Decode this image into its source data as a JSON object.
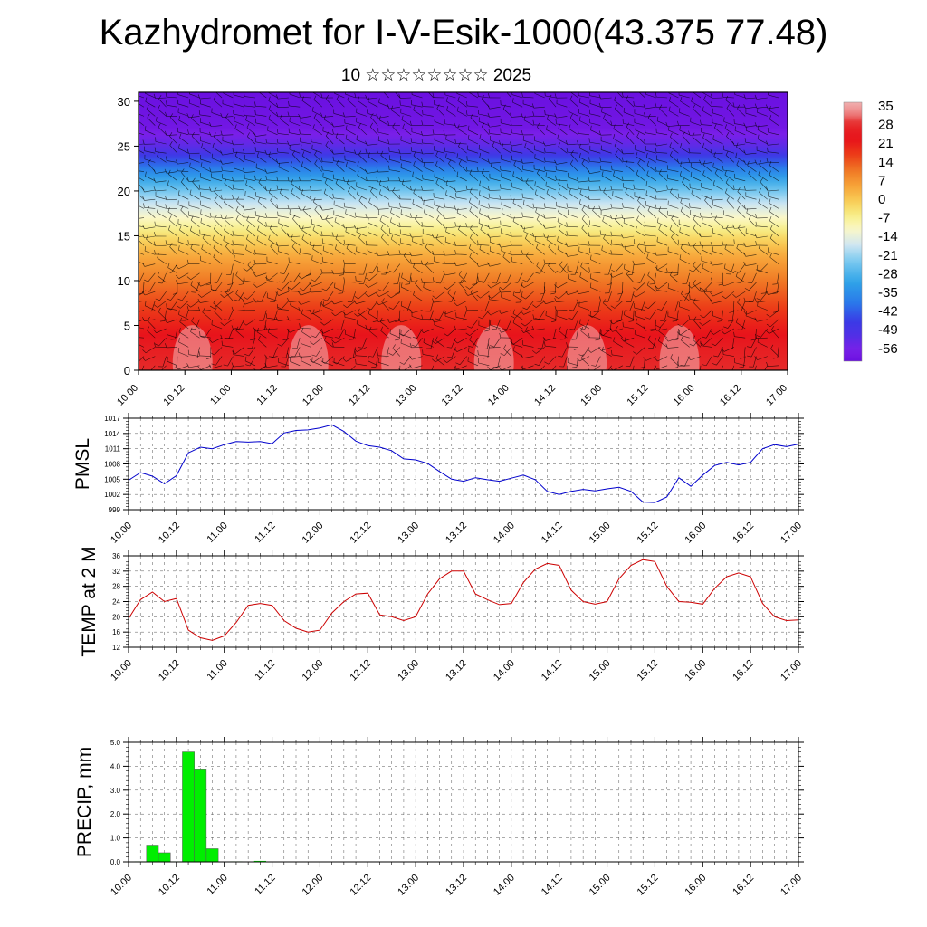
{
  "header": {
    "title": "Kazhydromet for I-V-Esik-1000(43.375 77.48)",
    "subtitle": "10 ☆☆☆☆☆☆☆☆ 2025"
  },
  "chart_data": [
    {
      "type": "heatmap",
      "title": "",
      "xlabel": "",
      "ylabel": "",
      "x_tick_labels": [
        "10.00",
        "10.12",
        "11.00",
        "11.12",
        "12.00",
        "12.12",
        "13.00",
        "13.12",
        "14.00",
        "14.12",
        "15.00",
        "15.12",
        "16.00",
        "16.12",
        "17.00"
      ],
      "y_ticks": [
        0,
        5,
        10,
        15,
        20,
        25,
        30
      ],
      "xlim": [
        0,
        168
      ],
      "ylim": [
        0,
        31
      ],
      "colorbar_labels": [
        "35",
        "28",
        "21",
        "14",
        "7",
        "0",
        "-7",
        "-14",
        "-21",
        "-28",
        "-35",
        "-42",
        "-49",
        "-56"
      ],
      "colorbar_range": [
        -60,
        38
      ],
      "colors": {
        "very_cold": "#7a1fe8",
        "cold": "#3a3ae6",
        "cool": "#2fa4e8",
        "mild": "#cfe6f2",
        "neutral": "#f7ef8a",
        "warm": "#f79a2a",
        "hot": "#e8121a",
        "very_hot": "#f0b0b0"
      },
      "description_levels": {
        "y": [
          0,
          3,
          6,
          10,
          13,
          15,
          17,
          19,
          21,
          23,
          25,
          27,
          31
        ],
        "t": [
          30,
          26,
          20,
          12,
          5,
          -2,
          -10,
          -18,
          -28,
          -40,
          -52,
          -58,
          -60
        ]
      },
      "overlay": "wind barbs"
    },
    {
      "type": "line",
      "ylabel": "PMSL",
      "x_tick_labels": [
        "10.00",
        "10.12",
        "11.00",
        "11.12",
        "12.00",
        "12.12",
        "13.00",
        "13.12",
        "14.00",
        "14.12",
        "15.00",
        "15.12",
        "16.00",
        "16.12",
        "17.00"
      ],
      "xlim": [
        0,
        168
      ],
      "ylim": [
        999,
        1017
      ],
      "y_ticks": [
        999,
        1002,
        1005,
        1008,
        1011,
        1014,
        1017
      ],
      "grid": true,
      "series": [
        {
          "color": "#0000cc",
          "x": [
            0,
            3,
            6,
            9,
            12,
            15,
            18,
            21,
            24,
            27,
            30,
            33,
            36,
            39,
            42,
            45,
            48,
            51,
            54,
            57,
            60,
            63,
            66,
            69,
            72,
            75,
            78,
            81,
            84,
            87,
            90,
            93,
            96,
            99,
            102,
            105,
            108,
            111,
            114,
            117,
            120,
            123,
            126,
            129,
            132,
            135,
            138,
            141,
            144,
            147,
            150,
            153,
            156,
            159,
            162,
            165,
            168
          ],
          "values": [
            1004.8,
            1006.3,
            1005.6,
            1004.1,
            1005.7,
            1010.2,
            1011.3,
            1011.0,
            1011.8,
            1012.4,
            1012.3,
            1012.4,
            1012.0,
            1014.1,
            1014.6,
            1014.7,
            1015.1,
            1015.7,
            1014.4,
            1012.5,
            1011.6,
            1011.3,
            1010.6,
            1009.0,
            1008.8,
            1008.1,
            1006.5,
            1005.0,
            1004.6,
            1005.3,
            1004.9,
            1004.6,
            1005.2,
            1005.8,
            1004.9,
            1002.6,
            1002.0,
            1002.6,
            1003.0,
            1002.7,
            1003.1,
            1003.4,
            1002.6,
            1000.5,
            1000.4,
            1001.5,
            1005.3,
            1003.6,
            1005.8,
            1007.7,
            1008.3,
            1007.8,
            1008.3,
            1011.0,
            1011.8,
            1011.4,
            1011.9
          ]
        }
      ]
    },
    {
      "type": "line",
      "ylabel": "TEMP at 2 M",
      "x_tick_labels": [
        "10.00",
        "10.12",
        "11.00",
        "11.12",
        "12.00",
        "12.12",
        "13.00",
        "13.12",
        "14.00",
        "14.12",
        "15.00",
        "15.12",
        "16.00",
        "16.12",
        "17.00"
      ],
      "xlim": [
        0,
        168
      ],
      "ylim": [
        12,
        36
      ],
      "y_ticks": [
        12,
        16,
        20,
        24,
        28,
        32,
        36
      ],
      "grid": true,
      "series": [
        {
          "color": "#cc0000",
          "x": [
            0,
            3,
            6,
            9,
            12,
            15,
            18,
            21,
            24,
            27,
            30,
            33,
            36,
            39,
            42,
            45,
            48,
            51,
            54,
            57,
            60,
            63,
            66,
            69,
            72,
            75,
            78,
            81,
            84,
            87,
            90,
            93,
            96,
            99,
            102,
            105,
            108,
            111,
            114,
            117,
            120,
            123,
            126,
            129,
            132,
            135,
            138,
            141,
            144,
            147,
            150,
            153,
            156,
            159,
            162,
            165,
            168
          ],
          "values": [
            19.5,
            24.5,
            26.5,
            24.0,
            24.8,
            16.5,
            14.5,
            13.8,
            15.0,
            18.5,
            23.0,
            23.5,
            23.0,
            19.0,
            17.0,
            16.0,
            16.5,
            21.0,
            24.0,
            26.0,
            26.2,
            20.5,
            20.0,
            19.0,
            20.0,
            26.0,
            30.0,
            32.0,
            32.0,
            26.0,
            24.5,
            23.2,
            23.5,
            29.0,
            32.5,
            34.0,
            33.5,
            27.0,
            24.0,
            23.3,
            24.0,
            30.0,
            33.5,
            35.0,
            34.5,
            28.0,
            24.0,
            23.8,
            23.3,
            27.5,
            30.5,
            31.5,
            30.5,
            23.5,
            20.0,
            19.0,
            19.2
          ]
        }
      ]
    },
    {
      "type": "bar",
      "ylabel": "PRECIP, mm",
      "x_tick_labels": [
        "10.00",
        "10.12",
        "11.00",
        "11.12",
        "12.00",
        "12.12",
        "13.00",
        "13.12",
        "14.00",
        "14.12",
        "15.00",
        "15.12",
        "16.00",
        "16.12",
        "17.00"
      ],
      "xlim": [
        0,
        168
      ],
      "ylim": [
        0,
        5
      ],
      "y_tick_labels": [
        "0.0",
        "1.0",
        "2.0",
        "3.0",
        "4.0",
        "5.0"
      ],
      "grid": true,
      "color": "#00ee00",
      "x": [
        3,
        6,
        9,
        12,
        15,
        18,
        21,
        24,
        27,
        30,
        33,
        36,
        39
      ],
      "values": [
        0.02,
        0.7,
        0.38,
        0.02,
        4.6,
        3.85,
        0.55,
        0.0,
        0.02,
        0.0,
        0.04,
        0.0,
        0.0
      ]
    }
  ]
}
